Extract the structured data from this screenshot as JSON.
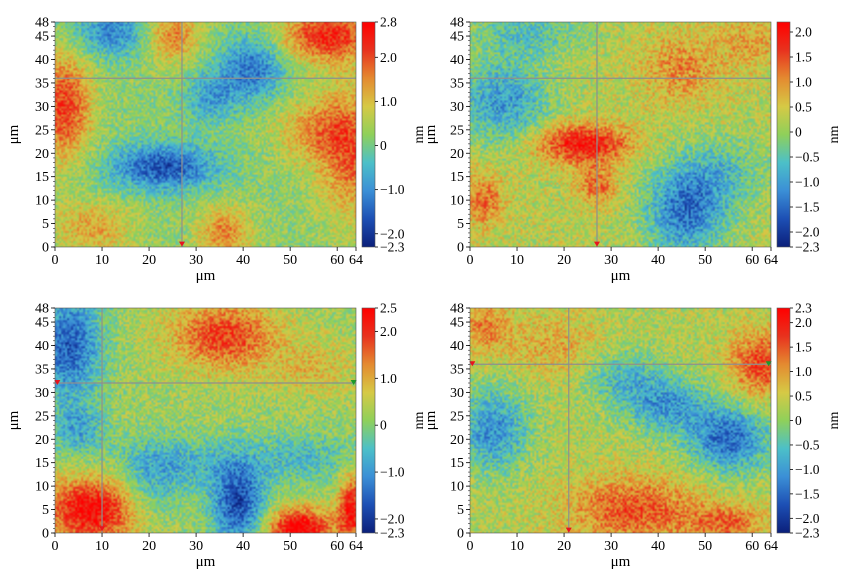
{
  "colors": {
    "colormap": [
      "#0b1f7a",
      "#1d4fb4",
      "#3b8fd6",
      "#4cc0c8",
      "#8fd05a",
      "#d6c945",
      "#e48a30",
      "#e8321e",
      "#ff0000"
    ],
    "crosshair": "#8f8f8f",
    "marker_red": "#e8141e",
    "marker_green": "#1c9a2a"
  },
  "chart_data": [
    {
      "type": "heatmap",
      "panel": "top-left",
      "xlabel": "μm",
      "ylabel": "μm",
      "colorbar_label": "nm",
      "xlim": [
        0,
        64
      ],
      "ylim": [
        0,
        48
      ],
      "x_ticks": [
        0,
        10,
        20,
        30,
        40,
        50,
        60,
        64
      ],
      "y_ticks": [
        0,
        5,
        10,
        15,
        20,
        25,
        30,
        35,
        40,
        45,
        48
      ],
      "colorbar_range": [
        -2.3,
        2.8
      ],
      "colorbar_ticks": [
        "2.8",
        "2.0",
        "1.0",
        "0",
        "−1.0",
        "−2.0",
        "−2.3"
      ],
      "crosshair": {
        "x": 27,
        "y": 36
      },
      "markers": [
        {
          "x": 27,
          "y": 0.5,
          "color": "red"
        }
      ],
      "features": [
        {
          "x": 23,
          "y": 17,
          "value": -1.9,
          "sx": 8,
          "sy": 3.5
        },
        {
          "x": 42,
          "y": 38,
          "value": -1.5,
          "sx": 5,
          "sy": 5
        },
        {
          "x": 33,
          "y": 32,
          "value": -1.0,
          "sx": 4,
          "sy": 4
        },
        {
          "x": 12,
          "y": 46,
          "value": -1.3,
          "sx": 6,
          "sy": 4
        },
        {
          "x": 58,
          "y": 45,
          "value": 2.1,
          "sx": 7,
          "sy": 4
        },
        {
          "x": 2,
          "y": 30,
          "value": 1.9,
          "sx": 4,
          "sy": 8
        },
        {
          "x": 63,
          "y": 20,
          "value": 1.5,
          "sx": 5,
          "sy": 10
        },
        {
          "x": 36,
          "y": 3,
          "value": 1.3,
          "sx": 4,
          "sy": 4
        },
        {
          "x": 8,
          "y": 4,
          "value": 1.0,
          "sx": 6,
          "sy": 4
        },
        {
          "x": 25,
          "y": 45,
          "value": 1.4,
          "sx": 4,
          "sy": 4
        },
        {
          "x": 55,
          "y": 25,
          "value": 1.0,
          "sx": 6,
          "sy": 5
        }
      ]
    },
    {
      "type": "heatmap",
      "panel": "top-right",
      "xlabel": "μm",
      "ylabel": "μm",
      "colorbar_label": "nm",
      "xlim": [
        0,
        64
      ],
      "ylim": [
        0,
        48
      ],
      "x_ticks": [
        0,
        10,
        20,
        30,
        40,
        50,
        60,
        64
      ],
      "y_ticks": [
        0,
        5,
        10,
        15,
        20,
        25,
        30,
        35,
        40,
        45,
        48
      ],
      "colorbar_range": [
        -2.3,
        2.2
      ],
      "colorbar_ticks": [
        "2.0",
        "1.5",
        "1.0",
        "0.5",
        "0",
        "−0.5",
        "−1.0",
        "−1.5",
        "−2.0",
        "−2.3"
      ],
      "crosshair": {
        "x": 27,
        "y": 36
      },
      "markers": [
        {
          "x": 27,
          "y": 0.5,
          "color": "red"
        }
      ],
      "features": [
        {
          "x": 24,
          "y": 22,
          "value": 1.8,
          "sx": 7,
          "sy": 3
        },
        {
          "x": 27,
          "y": 13,
          "value": 1.0,
          "sx": 3,
          "sy": 3
        },
        {
          "x": 7,
          "y": 31,
          "value": -1.3,
          "sx": 7,
          "sy": 6
        },
        {
          "x": 46,
          "y": 8,
          "value": -1.7,
          "sx": 6,
          "sy": 7
        },
        {
          "x": 12,
          "y": 46,
          "value": -0.8,
          "sx": 8,
          "sy": 4
        },
        {
          "x": 55,
          "y": 16,
          "value": -0.7,
          "sx": 6,
          "sy": 5
        },
        {
          "x": 45,
          "y": 38,
          "value": 0.8,
          "sx": 6,
          "sy": 5
        },
        {
          "x": 3,
          "y": 10,
          "value": 1.0,
          "sx": 3,
          "sy": 4
        },
        {
          "x": 60,
          "y": 44,
          "value": 0.6,
          "sx": 5,
          "sy": 4
        }
      ]
    },
    {
      "type": "heatmap",
      "panel": "bottom-left",
      "xlabel": "μm",
      "ylabel": "μm",
      "colorbar_label": "nm",
      "xlim": [
        0,
        64
      ],
      "ylim": [
        0,
        48
      ],
      "x_ticks": [
        0,
        10,
        20,
        30,
        40,
        50,
        60,
        64
      ],
      "y_ticks": [
        0,
        5,
        10,
        15,
        20,
        25,
        30,
        35,
        40,
        45,
        48
      ],
      "colorbar_range": [
        -2.3,
        2.5
      ],
      "colorbar_ticks": [
        "2.5",
        "2.0",
        "1.0",
        "0",
        "−1.0",
        "−2.0",
        "−2.3"
      ],
      "crosshair": {
        "x": 10,
        "y": 32
      },
      "markers": [
        {
          "x": 10,
          "y": 0.8,
          "color": "red"
        },
        {
          "x": 0.5,
          "y": 32,
          "color": "red"
        },
        {
          "x": 63.5,
          "y": 32,
          "color": "green"
        }
      ],
      "features": [
        {
          "x": 8,
          "y": 5,
          "value": 2.2,
          "sx": 7,
          "sy": 5
        },
        {
          "x": 52,
          "y": 1,
          "value": 2.3,
          "sx": 5,
          "sy": 3
        },
        {
          "x": 63,
          "y": 5,
          "value": 2.0,
          "sx": 2,
          "sy": 5
        },
        {
          "x": 36,
          "y": 42,
          "value": 1.6,
          "sx": 8,
          "sy": 5
        },
        {
          "x": 39,
          "y": 6,
          "value": -2.0,
          "sx": 4,
          "sy": 6
        },
        {
          "x": 3,
          "y": 40,
          "value": -1.8,
          "sx": 5,
          "sy": 8
        },
        {
          "x": 5,
          "y": 22,
          "value": -1.0,
          "sx": 4,
          "sy": 4
        },
        {
          "x": 28,
          "y": 15,
          "value": -0.8,
          "sx": 10,
          "sy": 4
        },
        {
          "x": 53,
          "y": 16,
          "value": -0.8,
          "sx": 8,
          "sy": 4
        },
        {
          "x": 20,
          "y": 10,
          "value": -0.7,
          "sx": 5,
          "sy": 6
        },
        {
          "x": 55,
          "y": 35,
          "value": 0.6,
          "sx": 6,
          "sy": 4
        }
      ]
    },
    {
      "type": "heatmap",
      "panel": "bottom-right",
      "xlabel": "μm",
      "ylabel": "μm",
      "colorbar_label": "nm",
      "xlim": [
        0,
        64
      ],
      "ylim": [
        0,
        48
      ],
      "x_ticks": [
        0,
        10,
        20,
        30,
        40,
        50,
        60,
        64
      ],
      "y_ticks": [
        0,
        5,
        10,
        15,
        20,
        25,
        30,
        35,
        40,
        45,
        48
      ],
      "colorbar_range": [
        -2.3,
        2.3
      ],
      "colorbar_ticks": [
        "2.3",
        "2.0",
        "1.5",
        "1.0",
        "0.5",
        "0",
        "−0.5",
        "−1.0",
        "−1.5",
        "−2.0",
        "−2.3"
      ],
      "crosshair": {
        "x": 21,
        "y": 36
      },
      "markers": [
        {
          "x": 21,
          "y": 0.5,
          "color": "red"
        },
        {
          "x": 0.5,
          "y": 36,
          "color": "red"
        },
        {
          "x": 63.5,
          "y": 36,
          "color": "green"
        }
      ],
      "features": [
        {
          "x": 55,
          "y": 20,
          "value": -1.7,
          "sx": 6,
          "sy": 5
        },
        {
          "x": 42,
          "y": 27,
          "value": -1.2,
          "sx": 6,
          "sy": 4
        },
        {
          "x": 33,
          "y": 33,
          "value": -0.9,
          "sx": 6,
          "sy": 4
        },
        {
          "x": 5,
          "y": 22,
          "value": -1.4,
          "sx": 5,
          "sy": 6
        },
        {
          "x": 62,
          "y": 36,
          "value": 1.4,
          "sx": 5,
          "sy": 5
        },
        {
          "x": 35,
          "y": 5,
          "value": 1.3,
          "sx": 10,
          "sy": 5
        },
        {
          "x": 3,
          "y": 44,
          "value": 0.9,
          "sx": 4,
          "sy": 4
        },
        {
          "x": 55,
          "y": 2,
          "value": 1.0,
          "sx": 6,
          "sy": 3
        },
        {
          "x": 18,
          "y": 40,
          "value": 0.6,
          "sx": 7,
          "sy": 5
        }
      ]
    }
  ]
}
